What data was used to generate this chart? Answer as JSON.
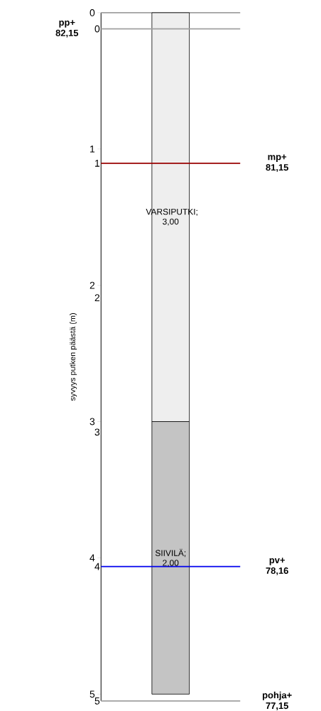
{
  "chart_data": {
    "type": "bar",
    "stacked": true,
    "ylabel": "syvyys putken päästä (m)",
    "categories": [
      null
    ],
    "series": [
      {
        "color": "#eeeeee",
        "values": [
          3.0
        ],
        "value_labels": [
          "VARSIPUTKI; 3,00"
        ]
      },
      {
        "color": "#c4c4c4",
        "values": [
          2.0
        ],
        "value_labels": [
          "SIIVILÄ; 2,00"
        ]
      }
    ],
    "ylim": [
      5.05,
      0
    ],
    "yticks": [
      0,
      1,
      2,
      3,
      4,
      5
    ],
    "y2lim": [
      5,
      -0.12
    ],
    "y2ticks": [
      0,
      1,
      2,
      3,
      4,
      5
    ],
    "ref_lines": [
      {
        "axis": "y",
        "value": 0,
        "color": "#a0a0a0"
      },
      {
        "axis": "y2",
        "value": 0,
        "label": "pp+ 82,15",
        "color": "#a0a0a0"
      },
      {
        "axis": "y2",
        "value": 1,
        "label": "mp+ 81,15",
        "color": "#990000"
      },
      {
        "axis": "y2",
        "value": 4,
        "label": "pv+ 78,16",
        "color": "#0000ee"
      },
      {
        "axis": "y2",
        "value": 5,
        "label": "pohja+ 77,15",
        "color": "#a0a0a0"
      }
    ]
  }
}
